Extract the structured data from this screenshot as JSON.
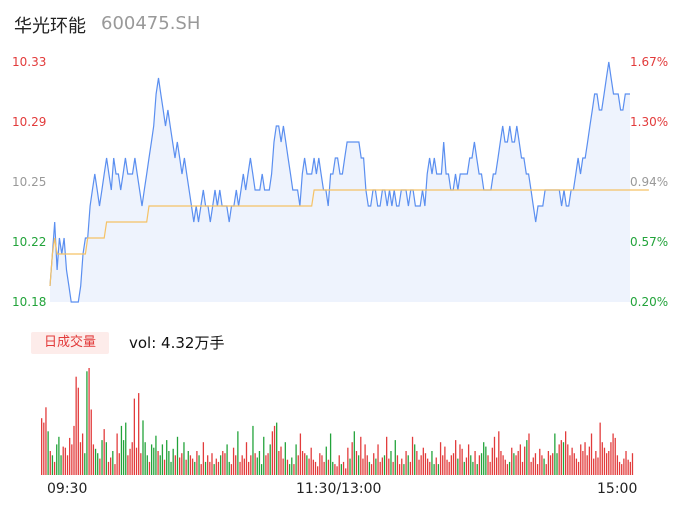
{
  "header": {
    "name": "华光环能",
    "code": "600475.SH"
  },
  "volume_panel": {
    "button_label": "日成交量",
    "vol_text": "vol: 4.32万手"
  },
  "colors": {
    "price_line": "#5b8ff0",
    "avg_line": "#f5c266",
    "up": "#e23b3b",
    "down": "#22a33a",
    "neutral": "#999999",
    "area_top": "#eef3fd"
  },
  "chart_data": {
    "type": "line",
    "y_left_ticks": [
      "10.33",
      "10.29",
      "10.25",
      "10.22",
      "10.18"
    ],
    "y_right_ticks": [
      "1.67%",
      "1.30%",
      "0.94%",
      "0.57%",
      "0.20%"
    ],
    "x_ticks": [
      "09:30",
      "11:30/13:00",
      "15:00"
    ],
    "ylim": [
      10.18,
      10.33
    ],
    "prev_close": 10.16,
    "price": [
      10.19,
      10.21,
      10.23,
      10.2,
      10.22,
      10.21,
      10.22,
      10.2,
      10.19,
      10.18,
      10.18,
      10.18,
      10.18,
      10.19,
      10.21,
      10.22,
      10.22,
      10.24,
      10.25,
      10.26,
      10.25,
      10.24,
      10.25,
      10.26,
      10.27,
      10.26,
      10.25,
      10.27,
      10.26,
      10.26,
      10.25,
      10.26,
      10.27,
      10.26,
      10.26,
      10.26,
      10.27,
      10.26,
      10.25,
      10.24,
      10.25,
      10.26,
      10.27,
      10.28,
      10.29,
      10.31,
      10.32,
      10.31,
      10.3,
      10.29,
      10.3,
      10.29,
      10.28,
      10.27,
      10.28,
      10.27,
      10.26,
      10.27,
      10.26,
      10.25,
      10.24,
      10.23,
      10.24,
      10.23,
      10.24,
      10.25,
      10.24,
      10.24,
      10.23,
      10.24,
      10.25,
      10.24,
      10.25,
      10.24,
      10.24,
      10.24,
      10.23,
      10.24,
      10.24,
      10.25,
      10.24,
      10.25,
      10.26,
      10.25,
      10.26,
      10.27,
      10.26,
      10.25,
      10.25,
      10.25,
      10.26,
      10.25,
      10.25,
      10.25,
      10.26,
      10.28,
      10.29,
      10.29,
      10.28,
      10.29,
      10.28,
      10.27,
      10.26,
      10.25,
      10.25,
      10.25,
      10.24,
      10.26,
      10.27,
      10.26,
      10.26,
      10.26,
      10.27,
      10.26,
      10.27,
      10.26,
      10.25,
      10.25,
      10.24,
      10.26,
      10.26,
      10.27,
      10.27,
      10.26,
      10.26,
      10.27,
      10.28,
      10.28,
      10.28,
      10.28,
      10.28,
      10.28,
      10.27,
      10.27,
      10.25,
      10.24,
      10.24,
      10.25,
      10.25,
      10.24,
      10.24,
      10.25,
      10.25,
      10.24,
      10.25,
      10.24,
      10.25,
      10.24,
      10.24,
      10.25,
      10.25,
      10.25,
      10.24,
      10.25,
      10.25,
      10.24,
      10.24,
      10.24,
      10.25,
      10.24,
      10.26,
      10.27,
      10.26,
      10.27,
      10.26,
      10.26,
      10.26,
      10.28,
      10.26,
      10.26,
      10.25,
      10.25,
      10.26,
      10.25,
      10.26,
      10.26,
      10.26,
      10.26,
      10.27,
      10.27,
      10.28,
      10.27,
      10.26,
      10.26,
      10.25,
      10.25,
      10.25,
      10.25,
      10.26,
      10.26,
      10.27,
      10.28,
      10.29,
      10.28,
      10.28,
      10.29,
      10.28,
      10.28,
      10.29,
      10.28,
      10.27,
      10.27,
      10.26,
      10.26,
      10.25,
      10.24,
      10.23,
      10.24,
      10.24,
      10.24,
      10.25,
      10.25,
      10.25,
      10.25,
      10.25,
      10.25,
      10.25,
      10.24,
      10.25,
      10.24,
      10.24,
      10.25,
      10.25,
      10.26,
      10.27,
      10.26,
      10.27,
      10.27,
      10.28,
      10.29,
      10.3,
      10.31,
      10.31,
      10.3,
      10.3,
      10.31,
      10.32,
      10.33,
      10.32,
      10.31,
      10.31,
      10.31,
      10.3,
      10.3,
      10.31,
      10.31,
      10.31
    ],
    "avg": [
      10.19,
      10.21,
      10.22,
      10.21,
      10.21,
      10.21,
      10.21,
      10.21,
      10.21,
      10.21,
      10.21,
      10.21,
      10.21,
      10.21,
      10.21,
      10.21,
      10.22,
      10.22,
      10.22,
      10.22,
      10.22,
      10.22,
      10.22,
      10.22,
      10.23,
      10.23,
      10.23,
      10.23,
      10.23,
      10.23,
      10.23,
      10.23,
      10.23,
      10.23,
      10.23,
      10.23,
      10.23,
      10.23,
      10.23,
      10.23,
      10.23,
      10.23,
      10.24,
      10.24,
      10.24,
      10.24,
      10.24,
      10.24,
      10.24,
      10.24,
      10.24,
      10.24,
      10.24,
      10.24,
      10.24,
      10.24,
      10.24,
      10.24,
      10.24,
      10.24,
      10.24,
      10.24,
      10.24,
      10.24,
      10.24,
      10.24,
      10.24,
      10.24,
      10.24,
      10.24,
      10.24,
      10.24,
      10.24,
      10.24,
      10.24,
      10.24,
      10.24,
      10.24,
      10.24,
      10.24,
      10.24,
      10.24,
      10.24,
      10.24,
      10.24,
      10.24,
      10.24,
      10.24,
      10.24,
      10.24,
      10.24,
      10.24,
      10.24,
      10.24,
      10.24,
      10.24,
      10.24,
      10.24,
      10.24,
      10.24,
      10.24,
      10.24,
      10.24,
      10.24,
      10.24,
      10.24,
      10.24,
      10.24,
      10.24,
      10.24,
      10.24,
      10.24,
      10.25,
      10.25,
      10.25,
      10.25,
      10.25,
      10.25,
      10.25,
      10.25,
      10.25,
      10.25,
      10.25,
      10.25,
      10.25,
      10.25,
      10.25,
      10.25,
      10.25,
      10.25,
      10.25,
      10.25,
      10.25,
      10.25,
      10.25,
      10.25,
      10.25,
      10.25,
      10.25,
      10.25,
      10.25,
      10.25,
      10.25,
      10.25,
      10.25,
      10.25,
      10.25,
      10.25,
      10.25,
      10.25,
      10.25,
      10.25,
      10.25,
      10.25,
      10.25,
      10.25,
      10.25,
      10.25,
      10.25,
      10.25,
      10.25,
      10.25,
      10.25,
      10.25,
      10.25,
      10.25,
      10.25,
      10.25,
      10.25,
      10.25,
      10.25,
      10.25,
      10.25,
      10.25,
      10.25,
      10.25,
      10.25,
      10.25,
      10.25,
      10.25,
      10.25,
      10.25,
      10.25,
      10.25,
      10.25,
      10.25,
      10.25,
      10.25,
      10.25,
      10.25,
      10.25,
      10.25,
      10.25,
      10.25,
      10.25,
      10.25,
      10.25,
      10.25,
      10.25,
      10.25,
      10.25,
      10.25,
      10.25,
      10.25,
      10.25,
      10.25,
      10.25,
      10.25,
      10.25,
      10.25,
      10.25,
      10.25,
      10.25,
      10.25,
      10.25,
      10.25,
      10.25,
      10.25,
      10.25,
      10.25,
      10.25,
      10.25,
      10.25,
      10.25,
      10.25,
      10.25,
      10.25,
      10.25,
      10.25,
      10.25,
      10.25,
      10.25,
      10.25,
      10.25,
      10.25,
      10.25,
      10.25,
      10.25,
      10.25,
      10.25,
      10.25,
      10.25,
      10.25,
      10.25,
      10.25,
      10.25,
      10.25,
      10.25,
      10.25,
      10.25,
      10.25,
      10.25,
      10.25,
      10.25,
      10.25
    ],
    "volume": [
      52,
      48,
      62,
      40,
      22,
      18,
      12,
      28,
      35,
      18,
      26,
      25,
      18,
      34,
      28,
      45,
      90,
      80,
      30,
      38,
      20,
      95,
      98,
      60,
      28,
      24,
      20,
      15,
      32,
      42,
      30,
      12,
      16,
      22,
      10,
      38,
      20,
      45,
      32,
      48,
      18,
      24,
      30,
      70,
      25,
      75,
      20,
      50,
      30,
      18,
      12,
      28,
      25,
      36,
      22,
      18,
      28,
      14,
      32,
      22,
      12,
      24,
      18,
      35,
      16,
      20,
      30,
      14,
      22,
      18,
      15,
      12,
      22,
      18,
      10,
      30,
      12,
      18,
      12,
      20,
      10,
      15,
      12,
      18,
      22,
      20,
      28,
      12,
      10,
      25,
      18,
      40,
      12,
      18,
      15,
      30,
      12,
      18,
      45,
      20,
      16,
      22,
      10,
      35,
      18,
      20,
      28,
      40,
      45,
      48,
      22,
      26,
      15,
      30,
      14,
      10,
      16,
      10,
      28,
      18,
      38,
      22,
      20,
      18,
      15,
      25,
      14,
      12,
      8,
      20,
      18,
      12,
      26,
      14,
      38,
      12,
      10,
      8,
      18,
      10,
      12,
      6,
      25,
      15,
      30,
      40,
      22,
      18,
      35,
      15,
      28,
      18,
      12,
      10,
      20,
      15,
      28,
      12,
      16,
      18,
      35,
      15,
      22,
      12,
      32,
      18,
      10,
      15,
      10,
      22,
      18,
      12,
      35,
      28,
      22,
      14,
      18,
      25,
      20,
      15,
      12,
      22,
      10,
      16,
      10,
      30,
      18,
      26,
      14,
      12,
      18,
      20,
      32,
      15,
      28,
      24,
      12,
      16,
      28,
      18,
      12,
      22,
      10,
      18,
      20,
      30,
      26,
      18,
      12,
      25,
      35,
      16,
      40,
      22,
      18,
      14,
      10,
      12,
      25,
      20,
      18,
      22,
      28,
      12,
      26,
      32,
      38,
      12,
      16,
      20,
      10,
      24,
      18,
      15,
      10,
      22,
      18,
      20,
      38,
      20,
      28,
      32,
      30,
      40,
      28,
      18,
      25,
      20,
      15,
      12,
      28,
      22,
      30,
      18,
      26,
      38,
      15,
      22,
      16,
      48,
      30,
      25,
      20,
      22,
      30,
      38,
      34,
      18,
      12,
      10,
      15,
      22,
      14,
      12,
      20
    ]
  }
}
